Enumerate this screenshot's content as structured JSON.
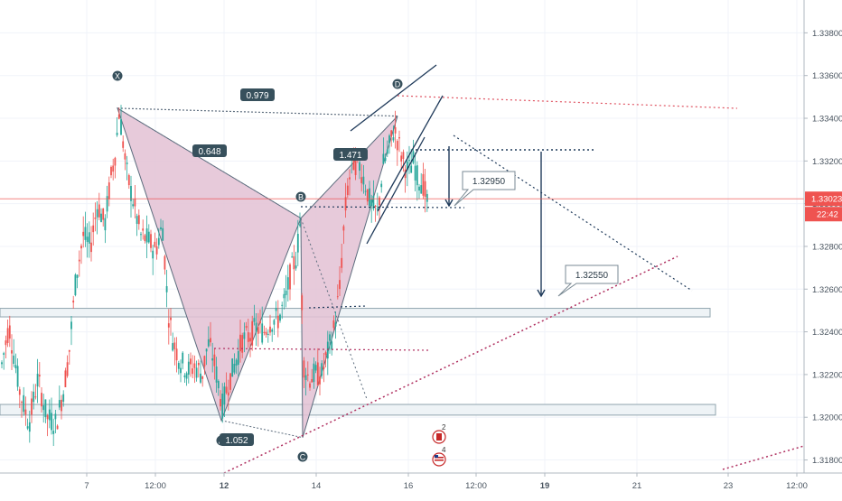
{
  "chart_data": {
    "type": "candlestick",
    "y_axis": {
      "ticks": [
        "1.33800",
        "1.33600",
        "1.33400",
        "1.33200",
        "1.33000",
        "1.32800",
        "1.32600",
        "1.32400",
        "1.32200",
        "1.32000",
        "1.31800"
      ],
      "tick_values": [
        1.338,
        1.336,
        1.334,
        1.332,
        1.33,
        1.328,
        1.326,
        1.324,
        1.322,
        1.32,
        1.318
      ],
      "range": [
        1.3176,
        1.3392
      ]
    },
    "x_axis": {
      "ticks": [
        {
          "label": "7",
          "bold": false
        },
        {
          "label": "12:00",
          "bold": false
        },
        {
          "label": "12",
          "bold": true
        },
        {
          "label": "14",
          "bold": false
        },
        {
          "label": "16",
          "bold": false
        },
        {
          "label": "12:00",
          "bold": false
        },
        {
          "label": "19",
          "bold": true
        },
        {
          "label": "21",
          "bold": false
        },
        {
          "label": "23",
          "bold": false
        },
        {
          "label": "12:00",
          "bold": false
        }
      ]
    },
    "current_price": {
      "value": 1.33023,
      "label": "1.33023",
      "countdown": "22:42",
      "color": "#ef5350"
    },
    "pattern_points": [
      {
        "label": "X",
        "price": 1.33447
      },
      {
        "label": "A",
        "price": 1.31985
      },
      {
        "label": "B",
        "price": 1.32932
      },
      {
        "label": "C",
        "price": 1.31905
      },
      {
        "label": "D",
        "price": 1.3341
      }
    ],
    "ratio_labels": [
      "0.979",
      "0.648",
      "1.471",
      "1.052"
    ],
    "target_labels": [
      "1.32950",
      "1.32550"
    ],
    "zones": [
      {
        "top": 1.3251,
        "bottom": 1.3247
      },
      {
        "top": 1.3206,
        "bottom": 1.3201
      }
    ],
    "event_markers": [
      {
        "count": "2",
        "flag": "CA"
      },
      {
        "count": "4",
        "flag": "US"
      }
    ],
    "colors": {
      "bull": "#26a69a",
      "bear": "#ef5350",
      "pattern_fill": "#e3c1d3",
      "pattern_line": "#5d6d7e",
      "navy": "#1f3a5a",
      "zone_fill": "#eef3f6",
      "zone_stroke": "#90a4ae",
      "dotted_red": "#e05563",
      "dotted_maroon": "#b03060",
      "label_bg": "#37505c"
    }
  }
}
